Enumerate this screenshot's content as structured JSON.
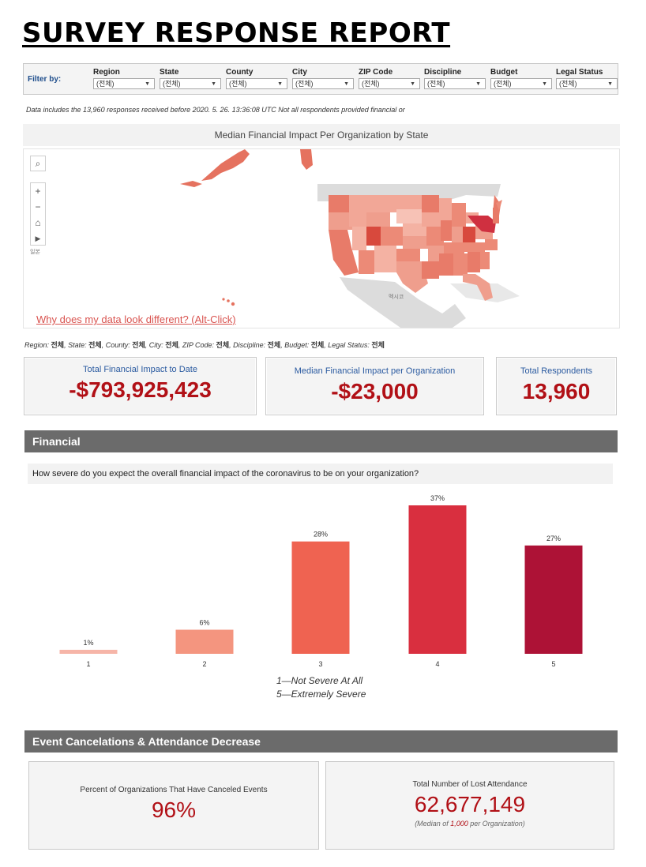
{
  "title": "SURVEY RESPONSE REPORT",
  "filters": {
    "label": "Filter by:",
    "items": [
      {
        "label": "Region",
        "value": "(전체)"
      },
      {
        "label": "State",
        "value": "(전체)"
      },
      {
        "label": "County",
        "value": "(전체)"
      },
      {
        "label": "City",
        "value": "(전체)"
      },
      {
        "label": "ZIP Code",
        "value": "(전체)"
      },
      {
        "label": "Discipline",
        "value": "(전체)"
      },
      {
        "label": "Budget",
        "value": "(전체)"
      },
      {
        "label": "Legal Status",
        "value": "(전체)"
      }
    ]
  },
  "data_note": "Data includes the 13,960 responses  received before 2020. 5. 26. 13:36:08 UTC  Not all respondents provided  financial or",
  "map": {
    "title": "Median Financial Impact Per Organization by State",
    "link": "Why does my data look different? (Alt-Click)",
    "label_japan": "일본",
    "label_mexico": "멕시코",
    "controls": {
      "search": "⌕",
      "zoom_in": "+",
      "zoom_out": "−",
      "home": "⌂",
      "pan": "▶"
    }
  },
  "filter_summary": {
    "items": [
      {
        "key": "Region: ",
        "value": "전체"
      },
      {
        "key": ", State: ",
        "value": "전체"
      },
      {
        "key": ", County:  ",
        "value": "전체"
      },
      {
        "key": ", City: ",
        "value": "전체"
      },
      {
        "key": ", ZIP Code: ",
        "value": "전체"
      },
      {
        "key": ", Discipline: ",
        "value": "전체"
      },
      {
        "key": ", Budget: ",
        "value": "전체"
      },
      {
        "key": ", Legal Status: ",
        "value": "전체"
      }
    ]
  },
  "kpis": {
    "total_impact": {
      "label": "Total Financial Impact to Date",
      "value": "-$793,925,423"
    },
    "median_impact": {
      "label": "Median Financial Impact per Organization",
      "value": "-$23,000"
    },
    "respondents": {
      "label": "Total Respondents",
      "value": "13,960"
    }
  },
  "financial": {
    "header": "Financial",
    "question": "How severe do you expect the overall financial impact of the coronavirus to be on your organization?",
    "legend_line1": "1—Not Severe At All",
    "legend_line2": "5—Extremely Severe"
  },
  "chart_data": {
    "type": "bar",
    "categories": [
      "1",
      "2",
      "3",
      "4",
      "5"
    ],
    "values": [
      1,
      6,
      28,
      37,
      27
    ],
    "data_labels": [
      "1%",
      "6%",
      "28%",
      "37%",
      "27%"
    ],
    "colors": [
      "#f6b5a8",
      "#f4957f",
      "#ef6351",
      "#d92f3f",
      "#ad1236"
    ],
    "ylim": [
      0,
      37
    ],
    "grid": false
  },
  "events": {
    "header": "Event Cancelations & Attendance Decrease",
    "canceled": {
      "label": "Percent of Organizations That Have Canceled Events",
      "value": "96%"
    },
    "lost_attendance": {
      "label": "Total Number of Lost Attendance",
      "value": "62,677,149",
      "sub_prefix": "(Median of ",
      "sub_value": "1,000",
      "sub_suffix": " per Organization)"
    }
  },
  "colors": {
    "accent_red": "#b11016",
    "kpi_label_blue": "#2a5aa0",
    "section_header_bg": "#6b6b6b"
  }
}
